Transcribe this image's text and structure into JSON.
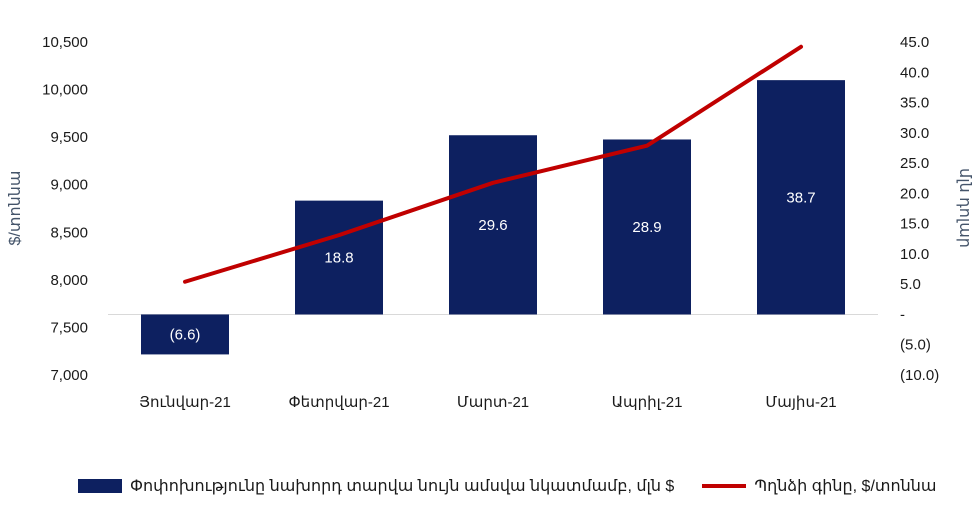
{
  "chart_data": {
    "type": "bar-line-combo",
    "categories": [
      "Յունվար-21",
      "Փետրվար-21",
      "Մարտ-21",
      "Ապրիլ-21",
      "Մայիս-21"
    ],
    "series": [
      {
        "name": "Փոփոխությունը նախորդ տարվա նույն ամսվա նկատմամբ, մլն $",
        "type": "bar",
        "axis": "right",
        "values": [
          -6.6,
          18.8,
          29.6,
          28.9,
          38.7
        ],
        "data_labels": [
          "(6.6)",
          "18.8",
          "29.6",
          "28.9",
          "38.7"
        ]
      },
      {
        "name": "Պղնձի գինը, $/տոննա",
        "type": "line",
        "axis": "left",
        "values": [
          7980,
          8470,
          9020,
          9410,
          10450
        ]
      }
    ],
    "left_axis": {
      "title": "$/տոննա",
      "ylim": [
        7000,
        10500
      ],
      "ticks": [
        "7,000",
        "7,500",
        "8,000",
        "8,500",
        "9,000",
        "9,500",
        "10,000",
        "10,500"
      ]
    },
    "right_axis": {
      "title": "մլն դոլար",
      "ylim": [
        -10,
        45
      ],
      "ticks": [
        "(10.0)",
        "(5.0)",
        "-",
        "5.0",
        "10.0",
        "15.0",
        "20.0",
        "25.0",
        "30.0",
        "35.0",
        "40.0",
        "45.0"
      ]
    },
    "grid": false,
    "legend_position": "bottom",
    "colors": {
      "bar": "#0d2060",
      "line": "#c00000",
      "axis_title": "#44546a"
    }
  }
}
